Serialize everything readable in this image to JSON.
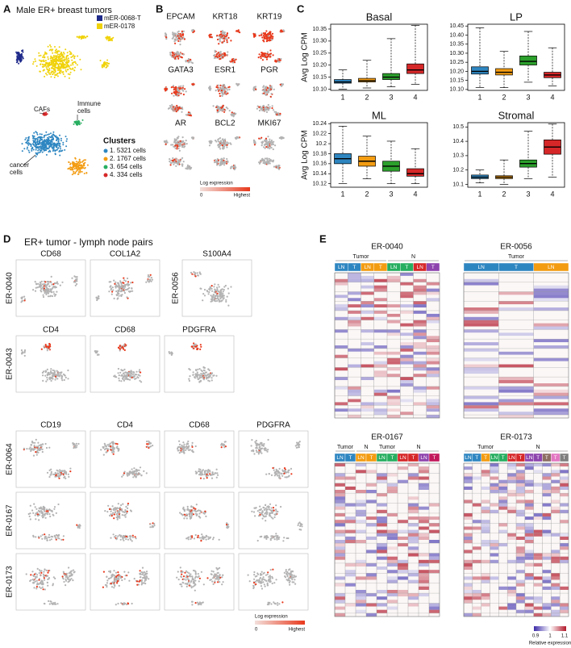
{
  "panel_labels": [
    "A",
    "B",
    "C",
    "D",
    "E"
  ],
  "panel_a": {
    "title": "Male ER+ breast tumors",
    "legend": [
      {
        "name": "mER-0068-T",
        "color": "#1f2a8a"
      },
      {
        "name": "mER-0178",
        "color": "#f0d20a"
      }
    ],
    "annotations": [
      "CAFs",
      "Immune",
      "cells",
      "cancer",
      "cells"
    ],
    "clusters_title": "Clusters",
    "clusters": [
      {
        "label": "1. 5321 cells",
        "color": "#2e86c1"
      },
      {
        "label": "2. 1767 cells",
        "color": "#f39c12"
      },
      {
        "label": "3. 654 cells",
        "color": "#27ae60"
      },
      {
        "label": "4. 334 cells",
        "color": "#d62728"
      }
    ]
  },
  "panel_b": {
    "genes": [
      "EPCAM",
      "KRT18",
      "KRT19",
      "GATA3",
      "ESR1",
      "PGR",
      "AR",
      "BCL2",
      "MKI67"
    ],
    "legend_title": "Log expression",
    "legend_min": "0",
    "legend_max": "Highest"
  },
  "chart_data": [
    {
      "type": "box",
      "title": "Basal",
      "ylabel": "Avg Log CPM",
      "categories": [
        "1",
        "2",
        "3",
        "4"
      ],
      "colors": [
        "#2e86c1",
        "#f39c12",
        "#2ca02c",
        "#d62728"
      ],
      "boxes": [
        {
          "min": 10.1,
          "q1": 10.125,
          "median": 10.13,
          "q3": 10.14,
          "max": 10.18
        },
        {
          "min": 10.105,
          "q1": 10.13,
          "median": 10.135,
          "q3": 10.145,
          "max": 10.22
        },
        {
          "min": 10.11,
          "q1": 10.14,
          "median": 10.15,
          "q3": 10.165,
          "max": 10.31
        },
        {
          "min": 10.12,
          "q1": 10.165,
          "median": 10.18,
          "q3": 10.205,
          "max": 10.365
        }
      ],
      "ylim": [
        10.095,
        10.37
      ],
      "yticks": [
        {
          "value": 10.1,
          "label": "10.10"
        },
        {
          "value": 10.15,
          "label": "10.15"
        },
        {
          "value": 10.2,
          "label": "10.20"
        },
        {
          "value": 10.25,
          "label": "10.25"
        },
        {
          "value": 10.3,
          "label": "10.30"
        },
        {
          "value": 10.35,
          "label": "10.35"
        }
      ]
    },
    {
      "type": "box",
      "title": "LP",
      "categories": [
        "1",
        "2",
        "3",
        "4"
      ],
      "colors": [
        "#2e86c1",
        "#f39c12",
        "#2ca02c",
        "#d62728"
      ],
      "boxes": [
        {
          "min": 10.11,
          "q1": 10.185,
          "median": 10.2,
          "q3": 10.225,
          "max": 10.44
        },
        {
          "min": 10.11,
          "q1": 10.18,
          "median": 10.195,
          "q3": 10.215,
          "max": 10.31
        },
        {
          "min": 10.14,
          "q1": 10.235,
          "median": 10.255,
          "q3": 10.285,
          "max": 10.42
        },
        {
          "min": 10.12,
          "q1": 10.165,
          "median": 10.18,
          "q3": 10.195,
          "max": 10.33
        }
      ],
      "ylim": [
        10.095,
        10.46
      ],
      "yticks": [
        {
          "value": 10.1,
          "label": "10.10"
        },
        {
          "value": 10.15,
          "label": "10.15"
        },
        {
          "value": 10.2,
          "label": "10.20"
        },
        {
          "value": 10.25,
          "label": "10.25"
        },
        {
          "value": 10.3,
          "label": "10.30"
        },
        {
          "value": 10.35,
          "label": "10.35"
        },
        {
          "value": 10.4,
          "label": "10.40"
        },
        {
          "value": 10.45,
          "label": "10.45"
        }
      ]
    },
    {
      "type": "box",
      "title": "ML",
      "ylabel": "Avg Log CPM",
      "categories": [
        "1",
        "2",
        "3",
        "4"
      ],
      "colors": [
        "#2e86c1",
        "#f39c12",
        "#2ca02c",
        "#d62728"
      ],
      "boxes": [
        {
          "min": 10.12,
          "q1": 10.16,
          "median": 10.17,
          "q3": 10.18,
          "max": 10.235
        },
        {
          "min": 10.13,
          "q1": 10.155,
          "median": 10.165,
          "q3": 10.175,
          "max": 10.215
        },
        {
          "min": 10.12,
          "q1": 10.145,
          "median": 10.155,
          "q3": 10.165,
          "max": 10.205
        },
        {
          "min": 10.12,
          "q1": 10.135,
          "median": 10.14,
          "q3": 10.15,
          "max": 10.19
        }
      ],
      "ylim": [
        10.113,
        10.242
      ],
      "yticks": [
        10.12,
        10.14,
        10.16,
        10.18,
        10.2,
        10.22,
        10.24
      ]
    },
    {
      "type": "box",
      "title": "Stromal",
      "categories": [
        "1",
        "2",
        "3",
        "4"
      ],
      "colors": [
        "#2e86c1",
        "#f39c12",
        "#2ca02c",
        "#d62728"
      ],
      "boxes": [
        {
          "min": 10.11,
          "q1": 10.14,
          "median": 10.15,
          "q3": 10.165,
          "max": 10.2
        },
        {
          "min": 10.1,
          "q1": 10.14,
          "median": 10.15,
          "q3": 10.16,
          "max": 10.27
        },
        {
          "min": 10.14,
          "q1": 10.22,
          "median": 10.245,
          "q3": 10.27,
          "max": 10.47
        },
        {
          "min": 10.15,
          "q1": 10.31,
          "median": 10.36,
          "q3": 10.41,
          "max": 10.52
        }
      ],
      "ylim": [
        10.08,
        10.53
      ],
      "yticks": [
        10.1,
        10.2,
        10.3,
        10.4,
        10.5
      ]
    }
  ],
  "panel_d": {
    "title": "ER+ tumor - lymph node pairs",
    "blocks": [
      {
        "sample": "ER-0040",
        "genes": [
          "CD68",
          "COL1A2"
        ]
      },
      {
        "sample": "ER-0056",
        "genes": [
          "S100A4"
        ]
      },
      {
        "sample": "ER-0043",
        "genes": [
          "CD4",
          "CD68",
          "PDGFRA"
        ]
      }
    ],
    "grid_genes": [
      "CD19",
      "CD4",
      "CD68",
      "PDGFRA"
    ],
    "grid_samples": [
      "ER-0064",
      "ER-0167",
      "ER-0173"
    ],
    "legend_title": "Log expression",
    "legend_min": "0",
    "legend_max": "Highest"
  },
  "panel_e": {
    "heatmaps": [
      {
        "sample": "ER-0040",
        "groups": [
          {
            "label": "Tumor",
            "columns": [
              "LN",
              "T",
              "LN",
              "T"
            ],
            "colors": [
              "#2e86c1",
              "#2e86c1",
              "#f39c12",
              "#f39c12"
            ]
          },
          {
            "label": "N",
            "columns": [
              "LN",
              "T",
              "LN",
              "T"
            ],
            "colors": [
              "#27ae60",
              "#27ae60",
              "#d62728",
              "#8e44ad"
            ]
          }
        ]
      },
      {
        "sample": "ER-0056",
        "groups": [
          {
            "label": "Tumor",
            "columns": [
              "LN",
              "T",
              "LN"
            ],
            "colors": [
              "#2e86c1",
              "#2e86c1",
              "#f39c12"
            ]
          }
        ]
      },
      {
        "sample": "ER-0167",
        "groups": [
          {
            "label": "Tumor",
            "columns": [
              "LN",
              "T"
            ],
            "colors": [
              "#2e86c1",
              "#2e86c1"
            ]
          },
          {
            "label": "N",
            "columns": [
              "LN",
              "T"
            ],
            "colors": [
              "#f39c12",
              "#f39c12"
            ]
          },
          {
            "label": "Tumor",
            "columns": [
              "LN",
              "T"
            ],
            "colors": [
              "#27ae60",
              "#27ae60"
            ]
          },
          {
            "label": "N",
            "columns": [
              "LN",
              "T",
              "LN",
              "T"
            ],
            "colors": [
              "#d62728",
              "#d62728",
              "#8e44ad",
              "#c2185b"
            ]
          }
        ]
      },
      {
        "sample": "ER-0173",
        "groups": [
          {
            "label": "Tumor",
            "columns": [
              "LN",
              "T",
              "T",
              "LN",
              "T"
            ],
            "colors": [
              "#2e86c1",
              "#2e86c1",
              "#f39c12",
              "#27ae60",
              "#27ae60"
            ]
          },
          {
            "label": "N",
            "columns": [
              "LN",
              "T",
              "LN",
              "T",
              "T",
              "T",
              "T"
            ],
            "colors": [
              "#d62728",
              "#d62728",
              "#8e44ad",
              "#8e44ad",
              "#8d6e63",
              "#e377c2",
              "#7f7f7f"
            ]
          }
        ]
      }
    ],
    "colorbar_ticks": [
      "0.9",
      "1",
      "1.1"
    ],
    "colorbar_title": "Relative expression"
  }
}
